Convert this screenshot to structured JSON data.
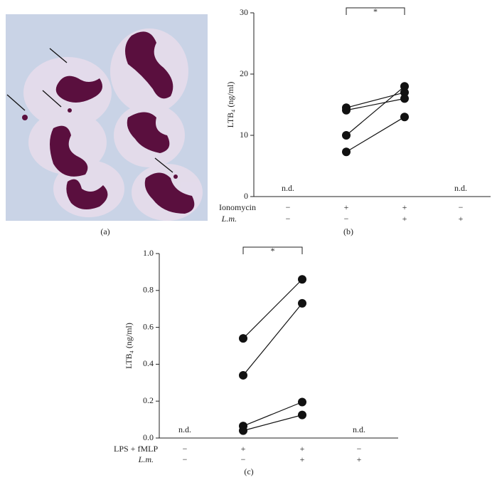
{
  "panel_a": {
    "label": "(a)"
  },
  "chart_data": [
    {
      "type": "line",
      "panel_label": "(b)",
      "y_label": "LTB₄ (ng/ml)",
      "ylim": [
        0,
        30
      ],
      "yticks": [
        0,
        10,
        20,
        30
      ],
      "rows": [
        {
          "label": "Ionomycin",
          "signs": [
            "−",
            "+",
            "+",
            "−"
          ]
        },
        {
          "label": "L.m.",
          "signs": [
            "−",
            "−",
            "+",
            "+"
          ]
        }
      ],
      "not_detected": [
        "n.d.",
        null,
        null,
        "n.d."
      ],
      "significance": "*",
      "color": "#111111",
      "series": [
        {
          "values": [
            null,
            14.5,
            17,
            null
          ]
        },
        {
          "values": [
            null,
            14.1,
            16,
            null
          ]
        },
        {
          "values": [
            null,
            10,
            18,
            null
          ]
        },
        {
          "values": [
            null,
            7.3,
            13,
            null
          ]
        }
      ]
    },
    {
      "type": "line",
      "panel_label": "(c)",
      "y_label": "LTB₄ (ng/ml)",
      "ylim": [
        0,
        1
      ],
      "yticks": [
        {
          "value": 0,
          "label": "0.0"
        },
        0.2,
        0.4,
        0.6,
        0.8,
        {
          "value": 1,
          "label": "1.0"
        }
      ],
      "rows": [
        {
          "label": "LPS + fMLP",
          "signs": [
            "−",
            "+",
            "+",
            "−"
          ]
        },
        {
          "label": "L.m.",
          "signs": [
            "−",
            "−",
            "+",
            "+"
          ]
        }
      ],
      "not_detected": [
        "n.d.",
        null,
        null,
        "n.d."
      ],
      "significance": "*",
      "color": "#111111",
      "series": [
        {
          "values": [
            null,
            0.54,
            0.86,
            null
          ]
        },
        {
          "values": [
            null,
            0.34,
            0.73,
            null
          ]
        },
        {
          "values": [
            null,
            0.065,
            0.195,
            null
          ]
        },
        {
          "values": [
            null,
            0.04,
            0.125,
            null
          ]
        }
      ]
    }
  ]
}
